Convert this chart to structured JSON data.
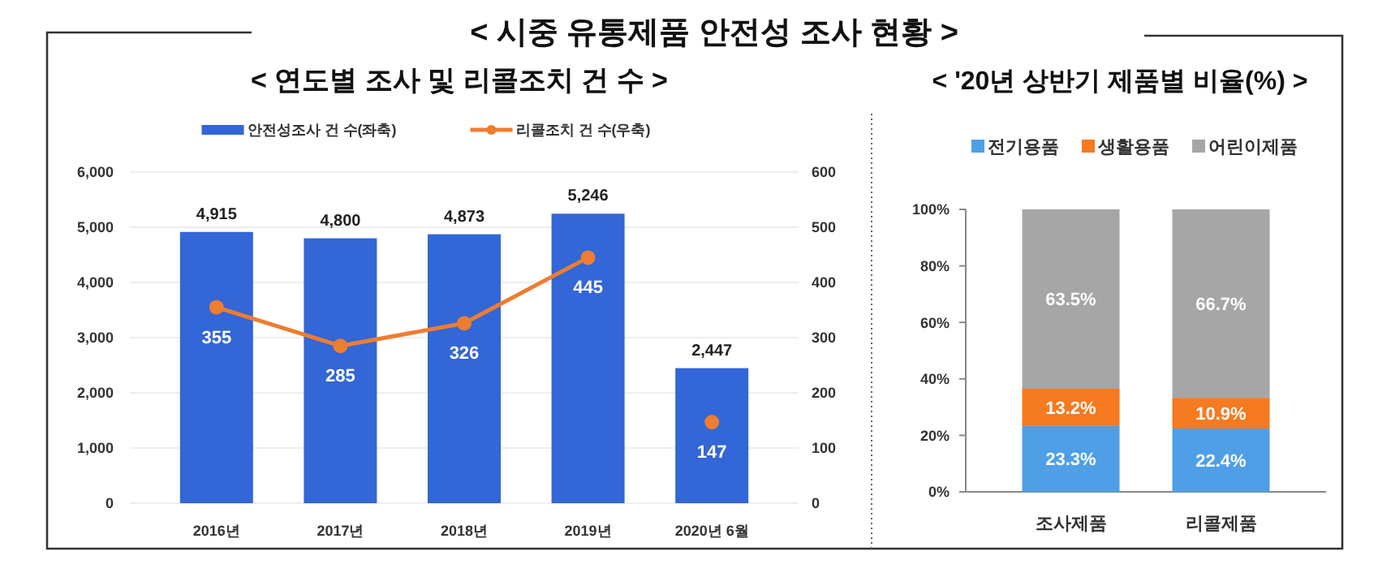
{
  "chart_data": [
    {
      "type": "bar",
      "title": "< 시중 유통제품 안전성 조사 현황 >",
      "subtitle": "< 연도별 조사 및 리콜조치 건 수 >",
      "categories": [
        "2016년",
        "2017년",
        "2018년",
        "2019년",
        "2020년 6월"
      ],
      "series": [
        {
          "name": "안전성조사 건 수(좌축)",
          "type": "bar",
          "color": "#3366d6",
          "values": [
            4915,
            4800,
            4873,
            5246,
            2447
          ],
          "value_labels": [
            "4,915",
            "4,800",
            "4,873",
            "5,246",
            "2,447"
          ]
        },
        {
          "name": "리콜조치 건 수(우축)",
          "type": "line",
          "axis": "y2",
          "color": "#ed7d31",
          "values": [
            355,
            285,
            326,
            445,
            null
          ]
        },
        {
          "type": "scatter",
          "axis": "y2",
          "color": "#ed7d31",
          "values": [
            null,
            null,
            null,
            null,
            147
          ]
        }
      ],
      "ylim": [
        0,
        6000
      ],
      "yticks": [
        0,
        {
          "value": 1000,
          "label": "1,000"
        },
        {
          "value": 2000,
          "label": "2,000"
        },
        {
          "value": 3000,
          "label": "3,000"
        },
        {
          "value": 4000,
          "label": "4,000"
        },
        {
          "value": 5000,
          "label": "5,000"
        },
        {
          "value": 6000,
          "label": "6,000"
        }
      ],
      "y2lim": [
        0,
        600
      ],
      "y2ticks": [
        0,
        100,
        200,
        300,
        400,
        500,
        600
      ],
      "grid": "y",
      "legend": "top",
      "marker": "circle",
      "data_labels": true
    },
    {
      "type": "bar",
      "title": "< '20년 상반기 제품별 비율(%) >",
      "categories": [
        "조사제품",
        "리콜제품"
      ],
      "stacked": true,
      "series": [
        {
          "name": "전기용품",
          "color": "#4f9fe6",
          "values": [
            23.3,
            22.4
          ],
          "value_labels": [
            "23.3%",
            "22.4%"
          ]
        },
        {
          "name": "생활용품",
          "color": "#f57a20",
          "values": [
            13.2,
            10.9
          ],
          "value_labels": [
            "13.2%",
            "10.9%"
          ]
        },
        {
          "name": "어린이제품",
          "color": "#a6a6a6",
          "values": [
            63.5,
            66.7
          ],
          "value_labels": [
            "63.5%",
            "66.7%"
          ]
        }
      ],
      "ylim": [
        0,
        100
      ],
      "yticks": [
        {
          "value": 0,
          "label": "0%"
        },
        {
          "value": 20,
          "label": "20%"
        },
        {
          "value": 40,
          "label": "40%"
        },
        {
          "value": 60,
          "label": "60%"
        },
        {
          "value": 80,
          "label": "80%"
        },
        {
          "value": 100,
          "label": "100%"
        }
      ],
      "legend": "top"
    }
  ]
}
